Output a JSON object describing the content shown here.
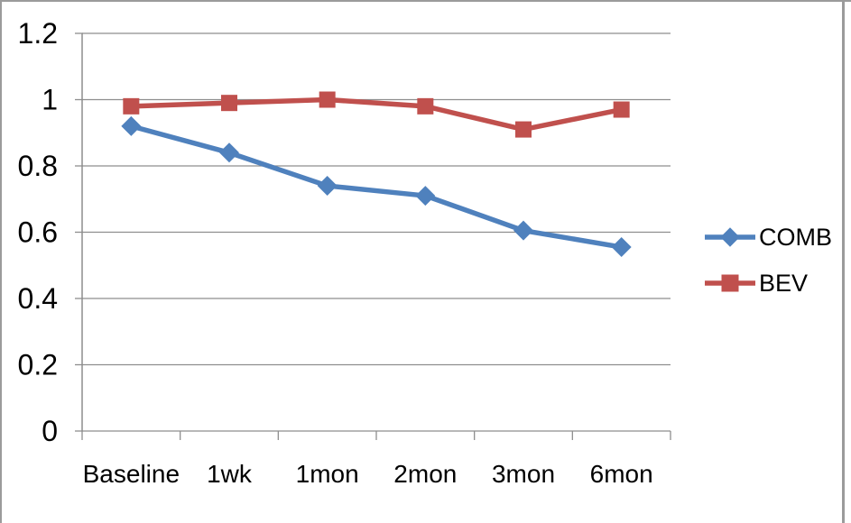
{
  "chart_data": {
    "type": "line",
    "categories": [
      "Baseline",
      "1wk",
      "1mon",
      "2mon",
      "3mon",
      "6mon"
    ],
    "series": [
      {
        "name": "COMB",
        "color": "#4F81BD",
        "marker": "diamond",
        "values": [
          0.92,
          0.84,
          0.74,
          0.71,
          0.605,
          0.555
        ]
      },
      {
        "name": "BEV",
        "color": "#C0504D",
        "marker": "square",
        "values": [
          0.98,
          0.99,
          1.0,
          0.98,
          0.91,
          0.97
        ]
      }
    ],
    "yticks": [
      0,
      0.2,
      0.4,
      0.6,
      0.8,
      1,
      1.2
    ],
    "ytick_labels": [
      "0",
      "0.2",
      "0.4",
      "0.6",
      "0.8",
      "1",
      "1.2"
    ],
    "ylim": [
      0,
      1.2
    ],
    "title": "",
    "xlabel": "",
    "ylabel": "",
    "grid": true,
    "legend_position": "right",
    "axis_color": "#8e8e8e",
    "text_color": "#000000",
    "background_color": "#ffffff",
    "frame_border_color": "#9b9b9b"
  }
}
